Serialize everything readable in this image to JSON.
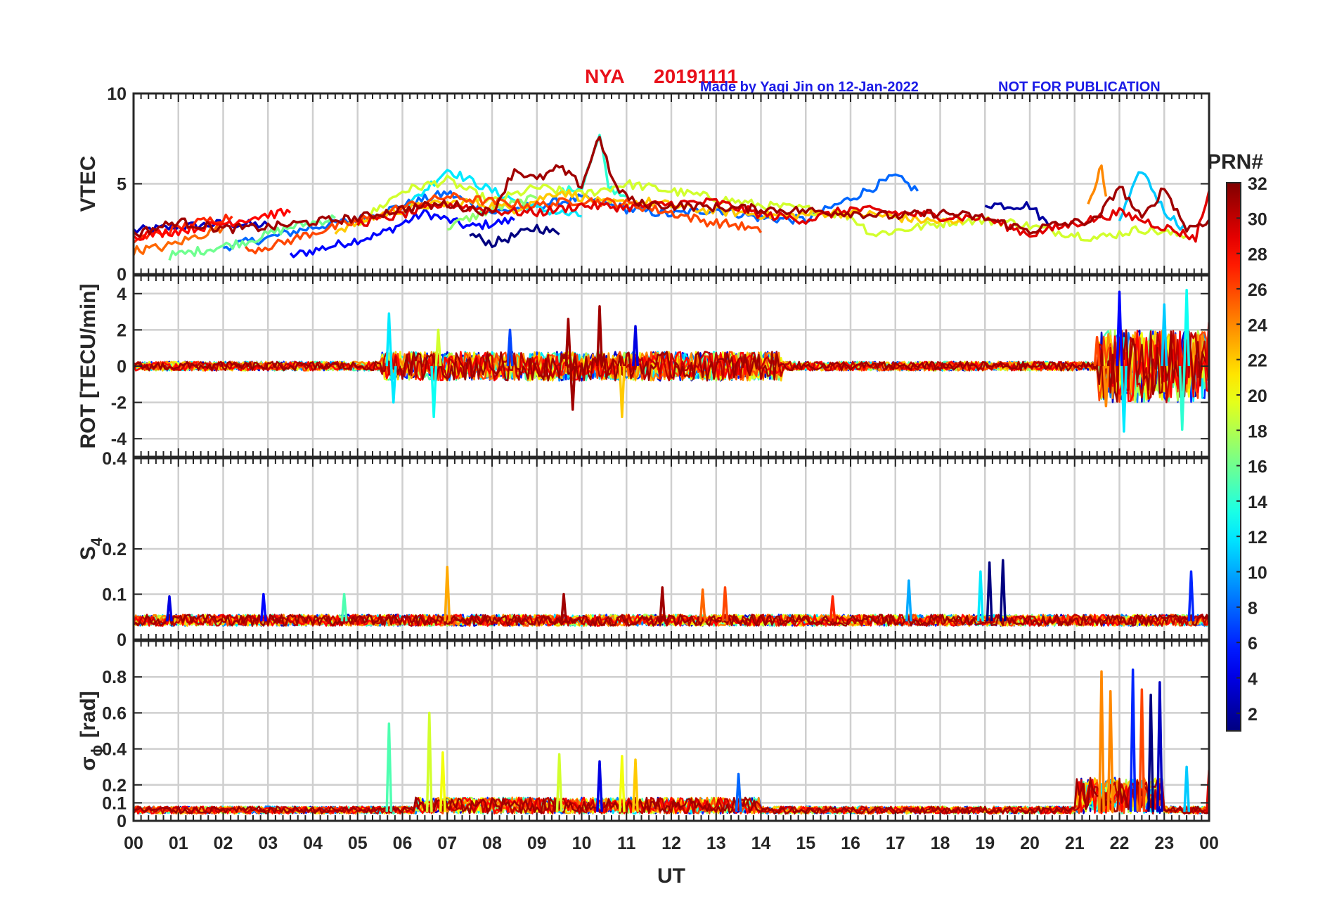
{
  "header": {
    "station": "NYA",
    "date": "20191111",
    "credit": "Made by Yaqi Jin on 12-Jan-2022",
    "notice": "NOT FOR PUBLICATION"
  },
  "chart_data": [
    {
      "type": "line",
      "panel": "vtec",
      "ylabel": "VTEC",
      "ylim": [
        0,
        10
      ],
      "yticks": [
        0,
        5,
        10
      ],
      "grid": true,
      "series": [
        {
          "prn": 3,
          "values": [
            [
              0.0,
              2.4
            ],
            [
              1.0,
              2.6
            ],
            [
              2.0,
              2.8
            ],
            [
              3.0,
              2.7
            ]
          ]
        },
        {
          "prn": 5,
          "values": [
            [
              3.5,
              1.0
            ],
            [
              4.5,
              1.6
            ],
            [
              5.5,
              2.2
            ],
            [
              6.5,
              3.4
            ],
            [
              7.5,
              2.6
            ],
            [
              8.5,
              3.0
            ]
          ]
        },
        {
          "prn": 8,
          "values": [
            [
              2.0,
              1.5
            ],
            [
              3.0,
              2.0
            ],
            [
              4.0,
              2.6
            ],
            [
              5.0,
              3.0
            ],
            [
              6.0,
              3.8
            ],
            [
              7.0,
              4.5
            ],
            [
              8.0,
              3.4
            ],
            [
              9.0,
              3.8
            ],
            [
              10.0,
              4.2
            ],
            [
              11.0,
              3.6
            ],
            [
              12.0,
              3.3
            ],
            [
              13.0,
              3.6
            ],
            [
              14.0,
              3.1
            ],
            [
              15.0,
              3.0
            ],
            [
              16.0,
              4.2
            ],
            [
              17.0,
              5.4
            ],
            [
              17.5,
              4.6
            ]
          ]
        },
        {
          "prn": 1,
          "values": [
            [
              7.5,
              2.2
            ],
            [
              8.0,
              1.7
            ],
            [
              8.5,
              2.1
            ],
            [
              9.0,
              2.6
            ],
            [
              9.5,
              2.2
            ]
          ]
        },
        {
          "prn": 2,
          "values": [
            [
              19.0,
              3.9
            ],
            [
              19.5,
              3.8
            ],
            [
              20.0,
              3.8
            ],
            [
              20.5,
              2.5
            ]
          ]
        },
        {
          "prn": 12,
          "values": [
            [
              6.0,
              3.5
            ],
            [
              7.0,
              5.8
            ],
            [
              8.0,
              4.6
            ],
            [
              9.0,
              3.6
            ],
            [
              10.0,
              3.2
            ]
          ]
        },
        {
          "prn": 11,
          "values": [
            [
              22.0,
              3.0
            ],
            [
              22.5,
              5.8
            ],
            [
              23.0,
              3.5
            ],
            [
              23.5,
              2.4
            ]
          ]
        },
        {
          "prn": 14,
          "values": [
            [
              9.5,
              4.5
            ],
            [
              10.0,
              4.8
            ],
            [
              10.4,
              7.6
            ],
            [
              10.6,
              4.8
            ],
            [
              11.0,
              4.3
            ]
          ]
        },
        {
          "prn": 16,
          "values": [
            [
              0.8,
              1.0
            ],
            [
              1.5,
              1.3
            ],
            [
              2.5,
              1.8
            ],
            [
              3.5,
              2.6
            ],
            [
              4.5,
              3.1
            ]
          ]
        },
        {
          "prn": 17,
          "values": [
            [
              7.0,
              2.6
            ],
            [
              8.0,
              3.6
            ],
            [
              9.0,
              4.2
            ]
          ]
        },
        {
          "prn": 19,
          "values": [
            [
              5.0,
              2.8
            ],
            [
              6.0,
              4.6
            ],
            [
              7.0,
              5.2
            ],
            [
              8.0,
              4.0
            ],
            [
              9.0,
              4.8
            ],
            [
              10.0,
              4.4
            ],
            [
              11.0,
              5.0
            ],
            [
              12.0,
              4.6
            ],
            [
              13.0,
              4.2
            ],
            [
              14.0,
              3.8
            ],
            [
              15.0,
              3.6
            ],
            [
              16.0,
              3.2
            ],
            [
              16.5,
              2.2
            ],
            [
              17.5,
              2.6
            ],
            [
              18.5,
              3.0
            ],
            [
              19.5,
              2.9
            ],
            [
              20.5,
              2.4
            ],
            [
              21.5,
              2.0
            ],
            [
              22.5,
              2.5
            ],
            [
              23.5,
              2.1
            ]
          ]
        },
        {
          "prn": 22,
          "values": [
            [
              4.5,
              2.4
            ],
            [
              5.5,
              3.3
            ],
            [
              6.5,
              3.8
            ],
            [
              7.5,
              4.0
            ],
            [
              8.5,
              3.6
            ],
            [
              9.5,
              4.6
            ],
            [
              10.5,
              3.9
            ],
            [
              11.5,
              4.0
            ],
            [
              12.5,
              3.6
            ],
            [
              13.5,
              3.4
            ],
            [
              14.5,
              3.2
            ],
            [
              15.5,
              3.4
            ],
            [
              16.5,
              3.3
            ],
            [
              17.5,
              3.0
            ],
            [
              18.5,
              2.8
            ]
          ]
        },
        {
          "prn": 24,
          "values": [
            [
              21.3,
              4.0
            ],
            [
              21.5,
              5.2
            ],
            [
              21.6,
              6.0
            ],
            [
              21.7,
              4.3
            ]
          ]
        },
        {
          "prn": 25,
          "values": [
            [
              0.0,
              1.3
            ],
            [
              0.7,
              1.5
            ],
            [
              1.3,
              2.0
            ],
            [
              2.0,
              2.6
            ]
          ]
        },
        {
          "prn": 26,
          "values": [
            [
              2.5,
              1.3
            ],
            [
              3.3,
              1.7
            ],
            [
              4.0,
              2.3
            ],
            [
              5.0,
              2.9
            ],
            [
              6.0,
              3.7
            ],
            [
              7.0,
              4.3
            ],
            [
              8.0,
              4.0
            ],
            [
              9.0,
              3.8
            ],
            [
              10.0,
              4.1
            ],
            [
              11.0,
              3.9
            ],
            [
              12.0,
              3.4
            ],
            [
              12.8,
              2.9
            ],
            [
              13.5,
              2.7
            ],
            [
              14.0,
              2.3
            ]
          ]
        },
        {
          "prn": 27,
          "values": [
            [
              0.0,
              1.9
            ],
            [
              0.8,
              2.4
            ],
            [
              1.5,
              2.9
            ],
            [
              2.2,
              3.2
            ]
          ]
        },
        {
          "prn": 28,
          "values": [
            [
              0.0,
              2.1
            ],
            [
              1.0,
              2.4
            ],
            [
              2.0,
              2.8
            ],
            [
              3.0,
              3.3
            ],
            [
              3.5,
              3.4
            ]
          ]
        },
        {
          "prn": 29,
          "values": [
            [
              5.0,
              2.8
            ],
            [
              6.0,
              3.3
            ],
            [
              7.0,
              3.9
            ],
            [
              8.0,
              3.5
            ],
            [
              9.0,
              3.4
            ],
            [
              10.0,
              3.8
            ],
            [
              11.0,
              3.7
            ],
            [
              12.0,
              3.9
            ],
            [
              13.0,
              4.0
            ],
            [
              14.0,
              3.3
            ],
            [
              15.0,
              3.0
            ],
            [
              16.0,
              3.6
            ],
            [
              17.0,
              3.4
            ],
            [
              18.0,
              3.2
            ],
            [
              19.0,
              3.1
            ],
            [
              20.0,
              2.2
            ],
            [
              21.0,
              2.8
            ],
            [
              22.0,
              3.4
            ],
            [
              23.0,
              2.6
            ],
            [
              23.7,
              2.0
            ],
            [
              24.0,
              4.6
            ]
          ]
        },
        {
          "prn": 31,
          "values": [
            [
              0.0,
              2.2
            ],
            [
              1.0,
              2.9
            ],
            [
              2.0,
              2.5
            ],
            [
              3.0,
              2.6
            ],
            [
              4.0,
              2.9
            ],
            [
              5.0,
              3.1
            ],
            [
              6.0,
              3.6
            ],
            [
              7.0,
              3.9
            ],
            [
              8.0,
              3.4
            ],
            [
              8.5,
              5.8
            ],
            [
              9.0,
              5.2
            ],
            [
              9.5,
              5.9
            ],
            [
              10.0,
              4.9
            ],
            [
              10.4,
              7.7
            ],
            [
              10.7,
              5.0
            ],
            [
              11.2,
              3.9
            ],
            [
              12.0,
              3.8
            ],
            [
              13.0,
              3.7
            ],
            [
              14.0,
              3.6
            ],
            [
              15.0,
              3.5
            ],
            [
              16.0,
              3.4
            ],
            [
              17.0,
              3.2
            ],
            [
              18.0,
              3.4
            ],
            [
              19.0,
              3.1
            ],
            [
              20.0,
              2.4
            ],
            [
              20.5,
              2.7
            ],
            [
              21.5,
              3.0
            ],
            [
              22.0,
              4.9
            ],
            [
              22.5,
              3.0
            ],
            [
              23.0,
              4.8
            ],
            [
              23.5,
              2.5
            ],
            [
              24.0,
              3.0
            ]
          ]
        }
      ]
    },
    {
      "type": "line",
      "panel": "rot",
      "ylabel": "ROT [TECU/min]",
      "ylim": [
        -5,
        5
      ],
      "yticks": [
        -4,
        -2,
        0,
        2,
        4
      ],
      "grid": true,
      "spikes": [
        {
          "prn": 12,
          "x": 5.7,
          "y": 2.9
        },
        {
          "prn": 12,
          "x": 5.8,
          "y": -2.0
        },
        {
          "prn": 13,
          "x": 6.7,
          "y": -2.8
        },
        {
          "prn": 19,
          "x": 6.8,
          "y": 2.0
        },
        {
          "prn": 7,
          "x": 8.4,
          "y": 2.0
        },
        {
          "prn": 31,
          "x": 9.7,
          "y": 2.6
        },
        {
          "prn": 31,
          "x": 9.8,
          "y": -2.4
        },
        {
          "prn": 31,
          "x": 10.4,
          "y": 3.3
        },
        {
          "prn": 22,
          "x": 10.9,
          "y": -2.8
        },
        {
          "prn": 4,
          "x": 11.2,
          "y": 2.2
        },
        {
          "prn": 24,
          "x": 21.7,
          "y": -2.2
        },
        {
          "prn": 26,
          "x": 21.5,
          "y": 1.6
        },
        {
          "prn": 5,
          "x": 22.0,
          "y": 4.1
        },
        {
          "prn": 12,
          "x": 22.1,
          "y": -3.6
        },
        {
          "prn": 11,
          "x": 23.0,
          "y": 3.4
        },
        {
          "prn": 13,
          "x": 23.5,
          "y": 4.2
        },
        {
          "prn": 14,
          "x": 23.4,
          "y": -3.5
        },
        {
          "prn": 29,
          "x": 24.0,
          "y": 2.4
        }
      ]
    },
    {
      "type": "line",
      "panel": "s4",
      "ylabel": "S",
      "ylabel_sub": "4",
      "ylim": [
        0,
        0.4
      ],
      "yticks": [
        0,
        0.1,
        0.2
      ],
      "ytick_top": "0.4",
      "grid": true,
      "spikes": [
        {
          "prn": 4,
          "x": 0.8,
          "y": 0.095
        },
        {
          "prn": 5,
          "x": 2.9,
          "y": 0.1
        },
        {
          "prn": 15,
          "x": 4.7,
          "y": 0.1
        },
        {
          "prn": 23,
          "x": 7.0,
          "y": 0.16
        },
        {
          "prn": 31,
          "x": 9.6,
          "y": 0.1
        },
        {
          "prn": 31,
          "x": 11.8,
          "y": 0.115
        },
        {
          "prn": 25,
          "x": 12.7,
          "y": 0.11
        },
        {
          "prn": 26,
          "x": 13.2,
          "y": 0.115
        },
        {
          "prn": 27,
          "x": 15.6,
          "y": 0.095
        },
        {
          "prn": 10,
          "x": 17.3,
          "y": 0.13
        },
        {
          "prn": 12,
          "x": 18.9,
          "y": 0.15
        },
        {
          "prn": 1,
          "x": 19.1,
          "y": 0.17
        },
        {
          "prn": 1,
          "x": 19.4,
          "y": 0.175
        },
        {
          "prn": 6,
          "x": 23.6,
          "y": 0.15
        }
      ]
    },
    {
      "type": "line",
      "panel": "sigma_phi",
      "ylabel": "σ",
      "ylabel_sub": "ϕ",
      "ylabel_unit": "[rad]",
      "ylim": [
        0,
        1.0
      ],
      "yticks": [
        0,
        0.1,
        0.2,
        0.4,
        0.6,
        0.8
      ],
      "grid": true,
      "spikes": [
        {
          "prn": 15,
          "x": 5.7,
          "y": 0.54
        },
        {
          "prn": 19,
          "x": 6.6,
          "y": 0.6
        },
        {
          "prn": 20,
          "x": 6.9,
          "y": 0.38
        },
        {
          "prn": 19,
          "x": 9.5,
          "y": 0.37
        },
        {
          "prn": 4,
          "x": 10.4,
          "y": 0.33
        },
        {
          "prn": 20,
          "x": 10.9,
          "y": 0.36
        },
        {
          "prn": 22,
          "x": 11.2,
          "y": 0.34
        },
        {
          "prn": 8,
          "x": 13.5,
          "y": 0.26
        },
        {
          "prn": 24,
          "x": 21.6,
          "y": 0.83
        },
        {
          "prn": 24,
          "x": 21.8,
          "y": 0.72
        },
        {
          "prn": 6,
          "x": 22.3,
          "y": 0.84
        },
        {
          "prn": 26,
          "x": 22.5,
          "y": 0.73
        },
        {
          "prn": 3,
          "x": 22.9,
          "y": 0.77
        },
        {
          "prn": 1,
          "x": 22.7,
          "y": 0.7
        },
        {
          "prn": 11,
          "x": 23.5,
          "y": 0.3
        },
        {
          "prn": 29,
          "x": 24.0,
          "y": 0.28
        }
      ]
    }
  ],
  "xaxis": {
    "label": "UT",
    "ticks": [
      "00",
      "01",
      "02",
      "03",
      "04",
      "05",
      "06",
      "07",
      "08",
      "09",
      "10",
      "11",
      "12",
      "13",
      "14",
      "15",
      "16",
      "17",
      "18",
      "19",
      "20",
      "21",
      "22",
      "23",
      "00"
    ],
    "range": [
      0,
      24
    ]
  },
  "colorbar": {
    "label": "PRN#",
    "range": [
      1,
      32
    ],
    "ticks": [
      2,
      4,
      6,
      8,
      10,
      12,
      14,
      16,
      18,
      20,
      22,
      24,
      26,
      28,
      30,
      32
    ],
    "colormap": "jet"
  }
}
